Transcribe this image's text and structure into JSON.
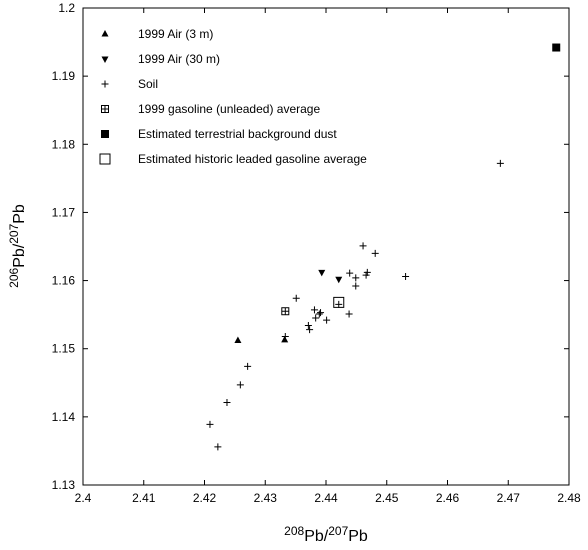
{
  "chart_data": {
    "type": "scatter",
    "title": "",
    "xlabel": {
      "sup1": "208",
      "base1": "Pb/",
      "sup2": "207",
      "base2": "Pb"
    },
    "ylabel": {
      "sup1": "206",
      "base1": "Pb/",
      "sup2": "207",
      "base2": "Pb"
    },
    "xlim": [
      2.4,
      2.48
    ],
    "ylim": [
      1.13,
      1.2
    ],
    "xticks": [
      2.4,
      2.41,
      2.42,
      2.43,
      2.44,
      2.45,
      2.46,
      2.47,
      2.48
    ],
    "yticks": [
      1.13,
      1.14,
      1.15,
      1.16,
      1.17,
      1.18,
      1.19,
      1.2
    ],
    "xtick_labels": [
      "2.4",
      "2.41",
      "2.42",
      "2.43",
      "2.44",
      "2.45",
      "2.46",
      "2.47",
      "2.48"
    ],
    "ytick_labels": [
      "1.13",
      "1.14",
      "1.15",
      "1.16",
      "1.17",
      "1.18",
      "1.19",
      "1.2"
    ],
    "grid": false,
    "legend_position": "top-left",
    "series": [
      {
        "name": "1999 Air (3 m)",
        "marker": "triangle-up",
        "points": [
          [
            2.4255,
            1.1512
          ],
          [
            2.4332,
            1.1513
          ]
        ]
      },
      {
        "name": "1999 Air (30 m)",
        "marker": "triangle-down",
        "points": [
          [
            2.4393,
            1.1612
          ],
          [
            2.4421,
            1.1602
          ]
        ]
      },
      {
        "name": "Soil",
        "marker": "plus",
        "points": [
          [
            2.4209,
            1.1389
          ],
          [
            2.4222,
            1.1356
          ],
          [
            2.4237,
            1.1421
          ],
          [
            2.4259,
            1.1447
          ],
          [
            2.4271,
            1.1474
          ],
          [
            2.4333,
            1.1518
          ],
          [
            2.4351,
            1.1574
          ],
          [
            2.4371,
            1.1534
          ],
          [
            2.4373,
            1.1528
          ],
          [
            2.4381,
            1.1557
          ],
          [
            2.4383,
            1.1545
          ],
          [
            2.4389,
            1.1551
          ],
          [
            2.4391,
            1.1553
          ],
          [
            2.4401,
            1.1542
          ],
          [
            2.4421,
            1.1565
          ],
          [
            2.4438,
            1.1551
          ],
          [
            2.4439,
            1.1611
          ],
          [
            2.4449,
            1.1604
          ],
          [
            2.4449,
            1.1592
          ],
          [
            2.4461,
            1.1651
          ],
          [
            2.4466,
            1.1608
          ],
          [
            2.4468,
            1.1612
          ],
          [
            2.4481,
            1.164
          ],
          [
            2.4531,
            1.1606
          ],
          [
            2.4687,
            1.1772
          ]
        ]
      },
      {
        "name": "1999 gasoline (unleaded) average",
        "marker": "square-grid",
        "points": [
          [
            2.4333,
            1.1555
          ]
        ]
      },
      {
        "name": "Estimated terrestrial background dust",
        "marker": "square-filled",
        "points": [
          [
            2.4779,
            1.1942
          ]
        ]
      },
      {
        "name": "Estimated historic leaded gasoline average",
        "marker": "square-open",
        "points": [
          [
            2.4421,
            1.1568
          ]
        ]
      }
    ]
  }
}
